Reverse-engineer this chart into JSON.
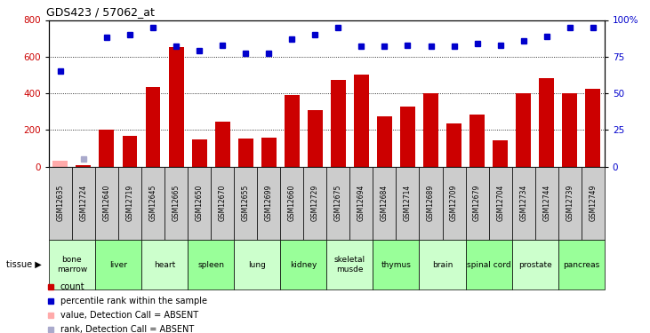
{
  "title": "GDS423 / 57062_at",
  "samples": [
    "GSM12635",
    "GSM12724",
    "GSM12640",
    "GSM12719",
    "GSM12645",
    "GSM12665",
    "GSM12650",
    "GSM12670",
    "GSM12655",
    "GSM12699",
    "GSM12660",
    "GSM12729",
    "GSM12675",
    "GSM12694",
    "GSM12684",
    "GSM12714",
    "GSM12689",
    "GSM12709",
    "GSM12679",
    "GSM12704",
    "GSM12734",
    "GSM12744",
    "GSM12739",
    "GSM12749"
  ],
  "bar_values": [
    30,
    5,
    200,
    165,
    435,
    650,
    148,
    245,
    155,
    160,
    390,
    310,
    475,
    500,
    275,
    325,
    400,
    235,
    285,
    145,
    400,
    480,
    400,
    425
  ],
  "bar_absent": [
    true,
    false,
    false,
    false,
    false,
    false,
    false,
    false,
    false,
    false,
    false,
    false,
    false,
    false,
    false,
    false,
    false,
    false,
    false,
    false,
    false,
    false,
    false,
    false
  ],
  "rank_values": [
    65,
    5,
    88,
    90,
    95,
    82,
    79,
    83,
    77,
    77,
    87,
    90,
    95,
    82,
    82,
    83,
    82,
    82,
    84,
    83,
    86,
    89,
    95,
    95
  ],
  "rank_absent": [
    false,
    true,
    false,
    false,
    false,
    false,
    false,
    false,
    false,
    false,
    false,
    false,
    false,
    false,
    false,
    false,
    false,
    false,
    false,
    false,
    false,
    false,
    false,
    false
  ],
  "tissues": [
    {
      "name": "bone\nmarrow",
      "spans": [
        0,
        2
      ]
    },
    {
      "name": "liver",
      "spans": [
        2,
        4
      ]
    },
    {
      "name": "heart",
      "spans": [
        4,
        6
      ]
    },
    {
      "name": "spleen",
      "spans": [
        6,
        8
      ]
    },
    {
      "name": "lung",
      "spans": [
        8,
        10
      ]
    },
    {
      "name": "kidney",
      "spans": [
        10,
        12
      ]
    },
    {
      "name": "skeletal\nmusde",
      "spans": [
        12,
        14
      ]
    },
    {
      "name": "thymus",
      "spans": [
        14,
        16
      ]
    },
    {
      "name": "brain",
      "spans": [
        16,
        18
      ]
    },
    {
      "name": "spinal cord",
      "spans": [
        18,
        20
      ]
    },
    {
      "name": "prostate",
      "spans": [
        20,
        22
      ]
    },
    {
      "name": "pancreas",
      "spans": [
        22,
        24
      ]
    }
  ],
  "ylim_left": [
    0,
    800
  ],
  "ylim_right": [
    0,
    100
  ],
  "yticks_left": [
    0,
    200,
    400,
    600,
    800
  ],
  "yticks_right": [
    0,
    25,
    50,
    75,
    100
  ],
  "bar_color": "#cc0000",
  "bar_absent_color": "#ffaaaa",
  "rank_color": "#0000cc",
  "rank_absent_color": "#aaaacc",
  "bg_color": "#ffffff",
  "plot_bg": "#ffffff",
  "sample_bg": "#cccccc",
  "tissue_bg": "#99ff99",
  "tissue_bg_alt": "#ccffcc",
  "legend_items": [
    {
      "label": "count",
      "color": "#cc0000"
    },
    {
      "label": "percentile rank within the sample",
      "color": "#0000cc"
    },
    {
      "label": "value, Detection Call = ABSENT",
      "color": "#ffaaaa"
    },
    {
      "label": "rank, Detection Call = ABSENT",
      "color": "#aaaacc"
    }
  ]
}
